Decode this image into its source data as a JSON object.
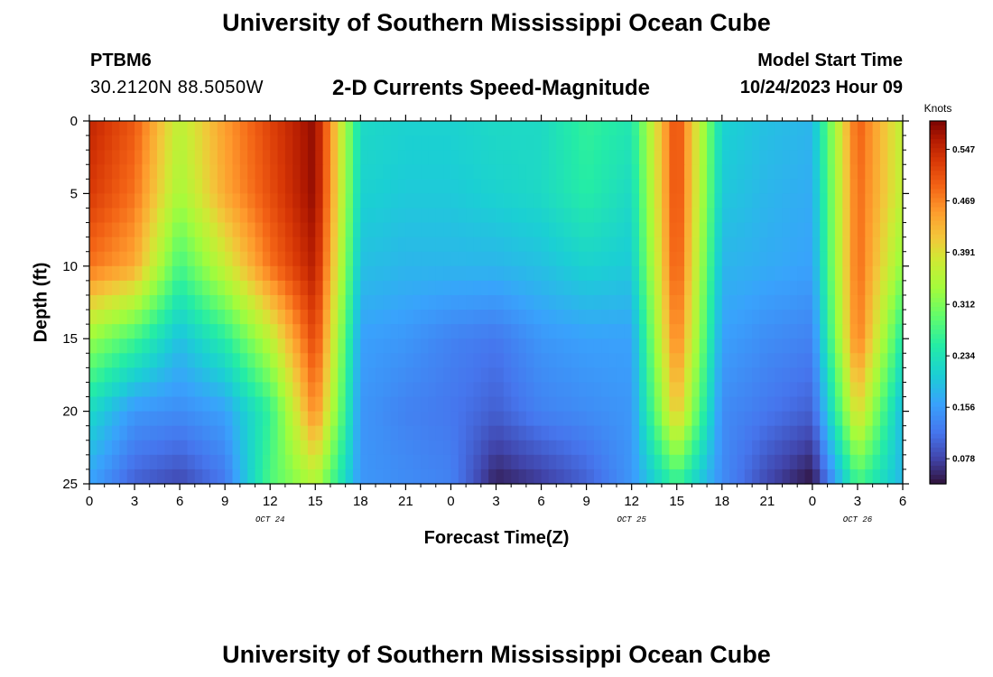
{
  "header": {
    "title": "University of Southern Mississippi Ocean Cube",
    "station": "PTBM6",
    "coords": "30.2120N  88.5050W",
    "subtitle": "2-D Currents Speed-Magnitude",
    "model_start_label": "Model Start Time",
    "model_start_value": "10/24/2023 Hour 09"
  },
  "footer": {
    "title": "University of Southern Mississippi Ocean Cube"
  },
  "chart_data": {
    "type": "heatmap",
    "title": "2-D Currents Speed-Magnitude",
    "xlabel": "Forecast Time(Z)",
    "ylabel": "Depth (ft)",
    "x_range": [
      0,
      54
    ],
    "y_range": [
      0,
      25
    ],
    "x_ticks": [
      {
        "pos": 0,
        "label": "0"
      },
      {
        "pos": 3,
        "label": "3"
      },
      {
        "pos": 6,
        "label": "6"
      },
      {
        "pos": 9,
        "label": "9"
      },
      {
        "pos": 12,
        "label": "12"
      },
      {
        "pos": 15,
        "label": "15"
      },
      {
        "pos": 18,
        "label": "18"
      },
      {
        "pos": 21,
        "label": "21"
      },
      {
        "pos": 24,
        "label": "0"
      },
      {
        "pos": 27,
        "label": "3"
      },
      {
        "pos": 30,
        "label": "6"
      },
      {
        "pos": 33,
        "label": "9"
      },
      {
        "pos": 36,
        "label": "12"
      },
      {
        "pos": 39,
        "label": "15"
      },
      {
        "pos": 42,
        "label": "18"
      },
      {
        "pos": 45,
        "label": "21"
      },
      {
        "pos": 48,
        "label": "0"
      },
      {
        "pos": 51,
        "label": "3"
      },
      {
        "pos": 54,
        "label": "6"
      }
    ],
    "date_labels": [
      {
        "pos": 12,
        "label": "OCT 24"
      },
      {
        "pos": 36,
        "label": "OCT 25"
      },
      {
        "pos": 51,
        "label": "OCT 26"
      }
    ],
    "y_ticks": [
      0,
      5,
      10,
      15,
      20,
      25
    ],
    "colorbar": {
      "unit_label": "Knots",
      "range": [
        0.04,
        0.59
      ],
      "ticks": [
        "0.547",
        "0.469",
        "0.391",
        "0.312",
        "0.234",
        "0.156",
        "0.078"
      ]
    },
    "times": [
      0,
      3,
      6,
      9,
      12,
      15,
      18,
      21,
      24,
      27,
      30,
      33,
      36,
      39,
      42,
      45,
      48,
      51,
      54
    ],
    "depths": [
      0,
      5,
      10,
      15,
      20,
      25
    ],
    "speed_knots": [
      [
        0.55,
        0.5,
        0.36,
        0.45,
        0.52,
        0.58,
        0.22,
        0.21,
        0.21,
        0.22,
        0.22,
        0.26,
        0.24,
        0.52,
        0.21,
        0.19,
        0.18,
        0.5,
        0.36
      ],
      [
        0.53,
        0.48,
        0.34,
        0.44,
        0.51,
        0.58,
        0.21,
        0.2,
        0.2,
        0.21,
        0.22,
        0.25,
        0.22,
        0.52,
        0.2,
        0.18,
        0.17,
        0.49,
        0.36
      ],
      [
        0.48,
        0.44,
        0.27,
        0.37,
        0.48,
        0.56,
        0.19,
        0.18,
        0.18,
        0.18,
        0.19,
        0.21,
        0.2,
        0.51,
        0.18,
        0.17,
        0.16,
        0.49,
        0.32
      ],
      [
        0.33,
        0.27,
        0.19,
        0.25,
        0.36,
        0.52,
        0.16,
        0.15,
        0.13,
        0.12,
        0.15,
        0.16,
        0.16,
        0.48,
        0.16,
        0.14,
        0.13,
        0.48,
        0.24
      ],
      [
        0.22,
        0.15,
        0.14,
        0.16,
        0.26,
        0.47,
        0.15,
        0.13,
        0.12,
        0.1,
        0.13,
        0.14,
        0.15,
        0.42,
        0.14,
        0.12,
        0.1,
        0.4,
        0.18
      ],
      [
        0.16,
        0.1,
        0.08,
        0.12,
        0.28,
        0.35,
        0.15,
        0.14,
        0.13,
        0.05,
        0.07,
        0.1,
        0.15,
        0.26,
        0.14,
        0.08,
        0.04,
        0.27,
        0.18
      ]
    ]
  }
}
